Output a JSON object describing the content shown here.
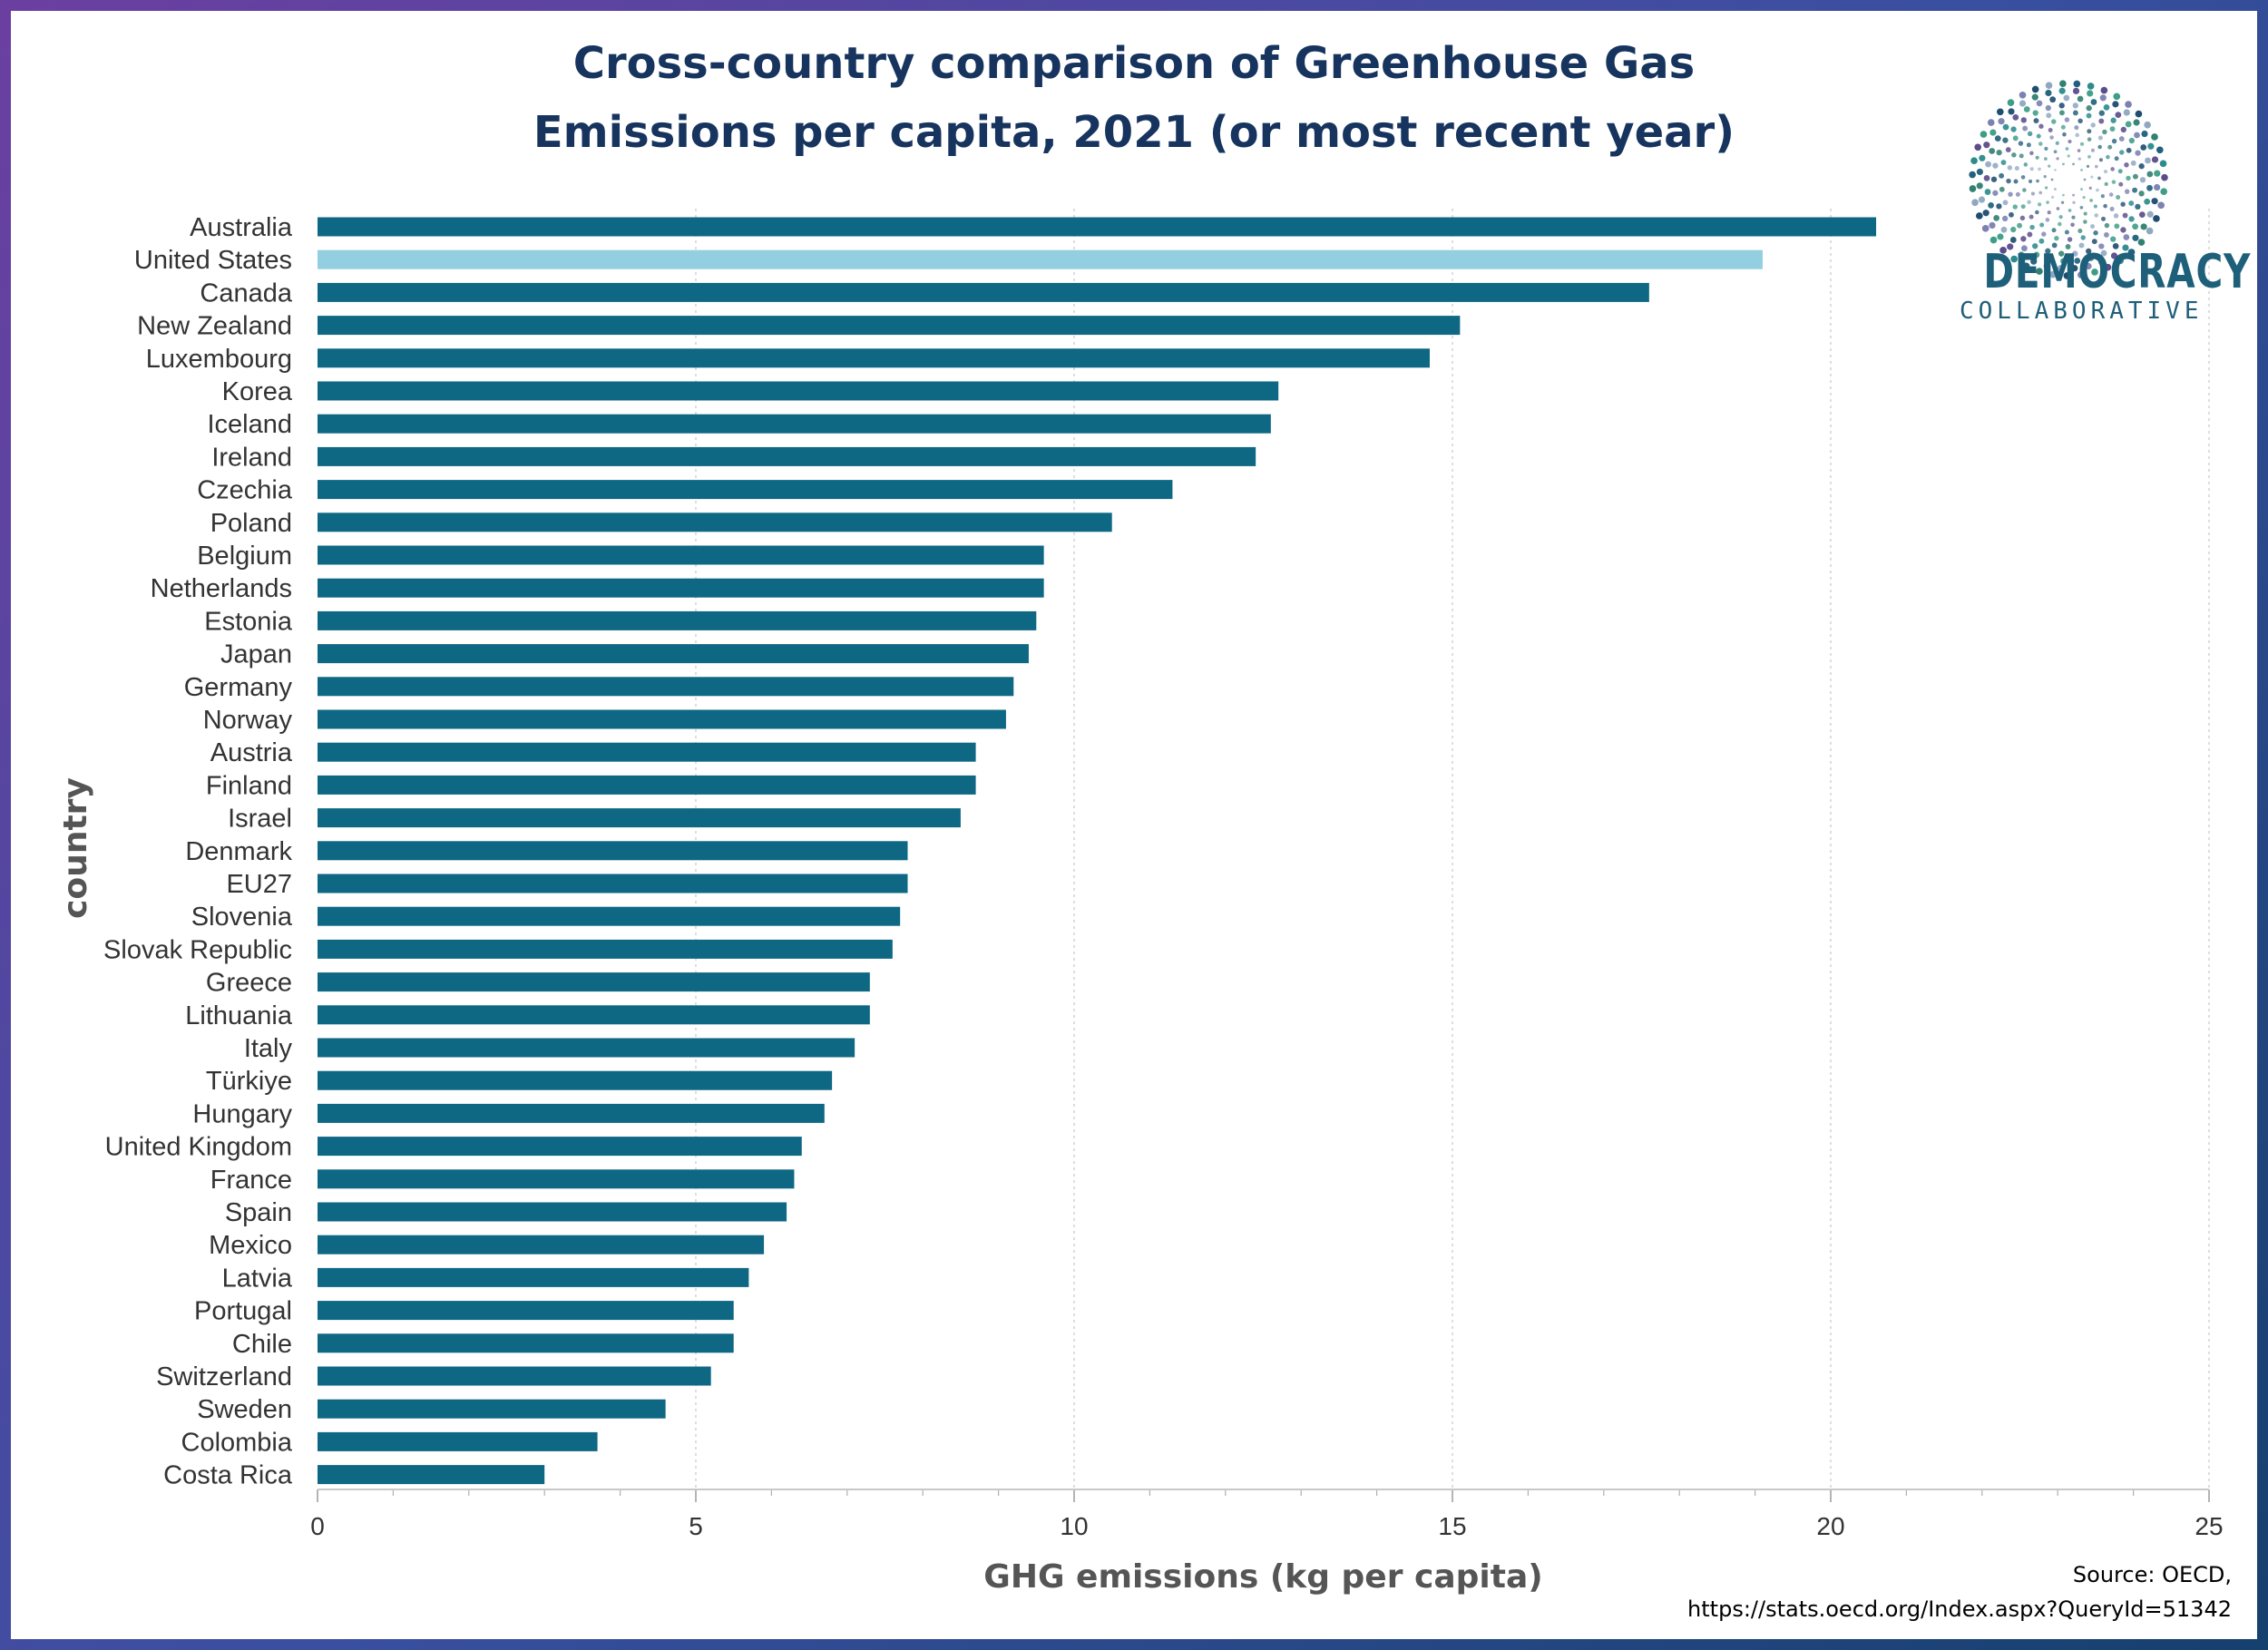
{
  "title_line1": "Cross-country comparison of Greenhouse Gas",
  "title_line2": "Emissions per capita, 2021 (or most recent year)",
  "logo": {
    "word1": "DEMOCRACY",
    "word2": "COLLABORATIVE",
    "icon": "dotted-circle-logo-icon"
  },
  "source_line1": "Source: OECD,",
  "source_line2": "https://stats.oecd.org/Index.aspx?QueryId=51342",
  "colors": {
    "bar": "#0e6783",
    "highlight": "#93cfe0",
    "title": "#16345e",
    "axis_text": "#555555"
  },
  "chart_data": {
    "type": "bar",
    "orientation": "horizontal",
    "title": "Cross-country comparison of Greenhouse Gas Emissions per capita, 2021 (or most recent year)",
    "xlabel": "GHG emissions (kg per capita)",
    "ylabel": "country",
    "xlim": [
      0,
      25
    ],
    "xticks": [
      0,
      5,
      10,
      15,
      20,
      25
    ],
    "grid": "vertical-dashed",
    "highlighted": "United States",
    "categories": [
      "Australia",
      "United States",
      "Canada",
      "New Zealand",
      "Luxembourg",
      "Korea",
      "Iceland",
      "Ireland",
      "Czechia",
      "Poland",
      "Belgium",
      "Netherlands",
      "Estonia",
      "Japan",
      "Germany",
      "Norway",
      "Austria",
      "Finland",
      "Israel",
      "Denmark",
      "EU27",
      "Slovenia",
      "Slovak Republic",
      "Greece",
      "Lithuania",
      "Italy",
      "Türkiye",
      "Hungary",
      "United Kingdom",
      "France",
      "Spain",
      "Mexico",
      "Latvia",
      "Portugal",
      "Chile",
      "Switzerland",
      "Sweden",
      "Colombia",
      "Costa Rica"
    ],
    "values": [
      20.6,
      19.1,
      17.6,
      15.1,
      14.7,
      12.7,
      12.6,
      12.4,
      11.3,
      10.5,
      9.6,
      9.6,
      9.5,
      9.4,
      9.2,
      9.1,
      8.7,
      8.7,
      8.5,
      7.8,
      7.8,
      7.7,
      7.6,
      7.3,
      7.3,
      7.1,
      6.8,
      6.7,
      6.4,
      6.3,
      6.2,
      5.9,
      5.7,
      5.5,
      5.5,
      5.2,
      4.6,
      3.7,
      3.0
    ]
  }
}
